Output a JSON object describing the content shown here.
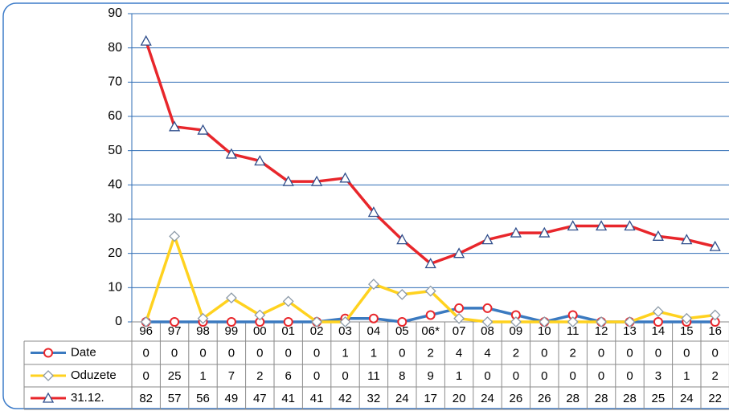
{
  "chart_data": {
    "type": "line",
    "categories": [
      "96",
      "97",
      "98",
      "99",
      "00",
      "01",
      "02",
      "03",
      "04",
      "05",
      "06*",
      "07",
      "08",
      "09",
      "10",
      "11",
      "12",
      "13",
      "14",
      "15",
      "16"
    ],
    "series": [
      {
        "name": "Date",
        "color": "#3b7ac0",
        "marker": "circle",
        "marker_color": "#e8262b",
        "values": [
          0,
          0,
          0,
          0,
          0,
          0,
          0,
          1,
          1,
          0,
          2,
          4,
          4,
          2,
          0,
          2,
          0,
          0,
          0,
          0,
          0
        ]
      },
      {
        "name": "Oduzete",
        "color": "#ffd21f",
        "marker": "diamond",
        "marker_color": "#8c9aa8",
        "values": [
          0,
          25,
          1,
          7,
          2,
          6,
          0,
          0,
          11,
          8,
          9,
          1,
          0,
          0,
          0,
          0,
          0,
          0,
          3,
          1,
          2
        ]
      },
      {
        "name": "31.12.",
        "color": "#e8262b",
        "marker": "triangle",
        "marker_color": "#2f4e8c",
        "values": [
          82,
          57,
          56,
          49,
          47,
          41,
          41,
          42,
          32,
          24,
          17,
          20,
          24,
          26,
          26,
          28,
          28,
          28,
          25,
          24,
          22
        ]
      }
    ],
    "ylim": [
      0,
      90
    ],
    "yticks": [
      0,
      10,
      20,
      30,
      40,
      50,
      60,
      70,
      80,
      90
    ],
    "grid": true
  }
}
